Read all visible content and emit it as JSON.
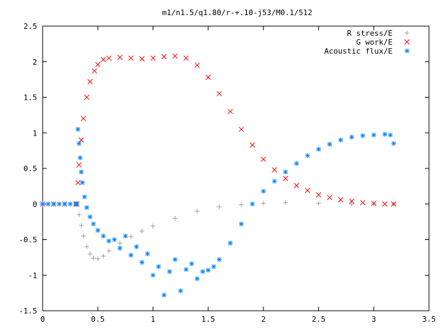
{
  "chart_data": {
    "type": "scatter",
    "title": "m1/n1.5/q1.80/r-+.10-j53/M0.1/512",
    "xlabel": "",
    "ylabel": "",
    "xlim": [
      0,
      3.5
    ],
    "ylim": [
      -1.5,
      2.5
    ],
    "x_ticks": [
      "0",
      "0.5",
      "1",
      "1.5",
      "2",
      "2.5",
      "3",
      "3.5"
    ],
    "y_ticks": [
      "2.5",
      "2",
      "1.5",
      "1",
      "0.5",
      "0",
      "-0.5",
      "-1",
      "-1.5"
    ],
    "grid": false,
    "legend_position": "top-right",
    "series": [
      {
        "name": "R stress/E",
        "marker": "plus",
        "color": "#a0a0a0",
        "x": [
          0.0,
          0.1,
          0.2,
          0.3,
          0.31,
          0.33,
          0.35,
          0.37,
          0.4,
          0.43,
          0.46,
          0.5,
          0.55,
          0.6,
          0.7,
          0.8,
          0.9,
          1.0,
          1.2,
          1.4,
          1.6,
          1.8,
          2.0,
          2.2,
          2.5,
          2.8,
          3.0,
          3.18
        ],
        "y": [
          0.0,
          0.0,
          0.0,
          0.0,
          0.0,
          -0.15,
          -0.3,
          -0.45,
          -0.6,
          -0.7,
          -0.76,
          -0.77,
          -0.73,
          -0.66,
          -0.55,
          -0.46,
          -0.38,
          -0.31,
          -0.2,
          -0.1,
          -0.04,
          -0.01,
          0.01,
          0.02,
          0.01,
          0.0,
          0.0,
          0.0
        ]
      },
      {
        "name": "G work/E",
        "marker": "cross",
        "color": "#ff0000",
        "x": [
          0.0,
          0.1,
          0.2,
          0.3,
          0.31,
          0.32,
          0.33,
          0.35,
          0.37,
          0.4,
          0.43,
          0.47,
          0.5,
          0.55,
          0.6,
          0.7,
          0.8,
          0.9,
          1.0,
          1.1,
          1.2,
          1.3,
          1.4,
          1.5,
          1.6,
          1.7,
          1.8,
          1.9,
          2.0,
          2.1,
          2.2,
          2.3,
          2.4,
          2.5,
          2.6,
          2.7,
          2.8,
          2.9,
          3.0,
          3.1,
          3.18
        ],
        "y": [
          0.0,
          0.0,
          0.0,
          0.0,
          0.0,
          0.3,
          0.55,
          0.9,
          1.2,
          1.5,
          1.72,
          1.87,
          1.96,
          2.03,
          2.05,
          2.06,
          2.05,
          2.04,
          2.05,
          2.07,
          2.08,
          2.05,
          1.95,
          1.78,
          1.55,
          1.3,
          1.05,
          0.83,
          0.63,
          0.48,
          0.36,
          0.26,
          0.19,
          0.13,
          0.09,
          0.06,
          0.04,
          0.02,
          0.01,
          0.0,
          0.0
        ]
      },
      {
        "name": "Acoustic flux/E",
        "marker": "star",
        "color": "#0080ff",
        "x": [
          0.0,
          0.05,
          0.1,
          0.15,
          0.2,
          0.25,
          0.3,
          0.31,
          0.32,
          0.33,
          0.34,
          0.35,
          0.36,
          0.38,
          0.4,
          0.43,
          0.46,
          0.5,
          0.55,
          0.6,
          0.65,
          0.7,
          0.75,
          0.8,
          0.85,
          0.9,
          0.95,
          1.0,
          1.05,
          1.1,
          1.15,
          1.2,
          1.25,
          1.3,
          1.35,
          1.4,
          1.45,
          1.5,
          1.55,
          1.6,
          1.7,
          1.8,
          1.9,
          2.0,
          2.1,
          2.2,
          2.3,
          2.4,
          2.5,
          2.6,
          2.7,
          2.8,
          2.9,
          3.0,
          3.1,
          3.15,
          3.18
        ],
        "y": [
          0.0,
          0.0,
          0.0,
          0.0,
          0.0,
          0.0,
          0.0,
          0.0,
          1.05,
          0.85,
          0.65,
          0.45,
          0.3,
          0.1,
          -0.05,
          -0.18,
          -0.28,
          -0.37,
          -0.45,
          -0.52,
          -0.5,
          -0.62,
          -0.45,
          -0.72,
          -0.6,
          -0.82,
          -0.7,
          -1.0,
          -0.88,
          -1.28,
          -0.95,
          -0.78,
          -1.22,
          -0.92,
          -0.84,
          -1.05,
          -0.95,
          -0.93,
          -0.88,
          -0.78,
          -0.55,
          -0.28,
          0.0,
          0.18,
          0.32,
          0.45,
          0.57,
          0.68,
          0.77,
          0.84,
          0.9,
          0.94,
          0.96,
          0.97,
          0.98,
          0.97,
          0.85
        ]
      }
    ]
  }
}
